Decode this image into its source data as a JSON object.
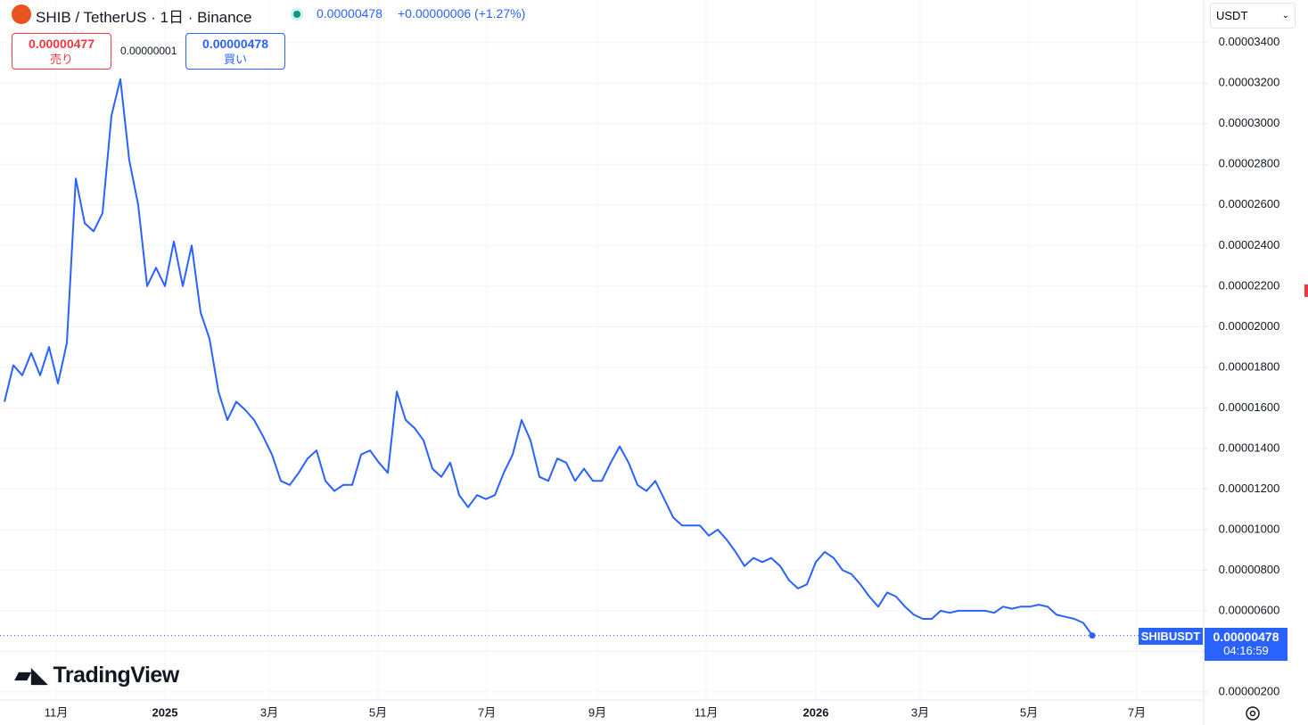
{
  "header": {
    "title": "SHIB / TetherUS · 1日 · Binance",
    "price": "0.00000478",
    "change": "+0.00000006 (+1.27%)",
    "sell_price": "0.00000477",
    "sell_label": "売り",
    "spread": "0.00000001",
    "buy_price": "0.00000478",
    "buy_label": "買い",
    "currency": "USDT",
    "symbol_tag": "SHIBUSDT",
    "last_price": "0.00000478",
    "countdown": "04:16:59",
    "logo": "TradingView"
  },
  "chart_data": {
    "type": "line",
    "color": "#2962ff",
    "grid": true,
    "values": [
      1.63e-05,
      1.81e-05,
      1.76e-05,
      1.87e-05,
      1.76e-05,
      1.9e-05,
      1.72e-05,
      1.92e-05,
      2.73e-05,
      2.51e-05,
      2.47e-05,
      2.56e-05,
      3.04e-05,
      3.22e-05,
      2.82e-05,
      2.6e-05,
      2.2e-05,
      2.29e-05,
      2.2e-05,
      2.42e-05,
      2.2e-05,
      2.4e-05,
      2.07e-05,
      1.94e-05,
      1.68e-05,
      1.54e-05,
      1.63e-05,
      1.59e-05,
      1.54e-05,
      1.46e-05,
      1.37e-05,
      1.24e-05,
      1.22e-05,
      1.28e-05,
      1.35e-05,
      1.39e-05,
      1.24e-05,
      1.19e-05,
      1.22e-05,
      1.22e-05,
      1.37e-05,
      1.39e-05,
      1.33e-05,
      1.28e-05,
      1.68e-05,
      1.54e-05,
      1.5e-05,
      1.44e-05,
      1.3e-05,
      1.26e-05,
      1.33e-05,
      1.17e-05,
      1.11e-05,
      1.17e-05,
      1.15e-05,
      1.17e-05,
      1.28e-05,
      1.37e-05,
      1.54e-05,
      1.44e-05,
      1.26e-05,
      1.24e-05,
      1.35e-05,
      1.33e-05,
      1.24e-05,
      1.3e-05,
      1.24e-05,
      1.24e-05,
      1.33e-05,
      1.41e-05,
      1.33e-05,
      1.22e-05,
      1.19e-05,
      1.24e-05,
      1.15e-05,
      1.06e-05,
      1.02e-05,
      1.02e-05,
      1.02e-05,
      9.7e-06,
      1e-05,
      9.5e-06,
      8.9e-06,
      8.2e-06,
      8.6e-06,
      8.4e-06,
      8.6e-06,
      8.2e-06,
      7.5e-06,
      7.1e-06,
      7.3e-06,
      8.4e-06,
      8.9e-06,
      8.6e-06,
      8e-06,
      7.8e-06,
      7.3e-06,
      6.7e-06,
      6.2e-06,
      6.9e-06,
      6.7e-06,
      6.2e-06,
      5.8e-06,
      5.6e-06,
      5.6e-06,
      6e-06,
      5.9e-06,
      6e-06,
      6e-06,
      6e-06,
      6e-06,
      5.9e-06,
      6.2e-06,
      6.1e-06,
      6.2e-06,
      6.2e-06,
      6.3e-06,
      6.2e-06,
      5.8e-06,
      5.7e-06,
      5.6e-06,
      5.4e-06,
      4.78e-06
    ],
    "xlim": [
      -0.5,
      134.5
    ],
    "xticks": [
      {
        "value": 5.8,
        "label": "11月"
      },
      {
        "value": 18,
        "label": "2025"
      },
      {
        "value": 29.7,
        "label": "3月"
      },
      {
        "value": 41.9,
        "label": "5月"
      },
      {
        "value": 54.1,
        "label": "7月"
      },
      {
        "value": 66.5,
        "label": "9月"
      },
      {
        "value": 78.7,
        "label": "11月"
      },
      {
        "value": 91,
        "label": "2026"
      },
      {
        "value": 102.7,
        "label": "3月"
      },
      {
        "value": 114.9,
        "label": "5月"
      },
      {
        "value": 127,
        "label": "7月"
      }
    ],
    "ylim": [
      1.6e-06,
      3.61e-05
    ],
    "yticks": [
      {
        "value": 2e-06,
        "label": "0.00000200"
      },
      {
        "value": 4e-06,
        "label": "0.00000400"
      },
      {
        "value": 6e-06,
        "label": "0.00000600"
      },
      {
        "value": 8e-06,
        "label": "0.00000800"
      },
      {
        "value": 1e-05,
        "label": "0.00001000"
      },
      {
        "value": 1.2e-05,
        "label": "0.00001200"
      },
      {
        "value": 1.4e-05,
        "label": "0.00001400"
      },
      {
        "value": 1.6e-05,
        "label": "0.00001600"
      },
      {
        "value": 1.8e-05,
        "label": "0.00001800"
      },
      {
        "value": 2e-05,
        "label": "0.00002000"
      },
      {
        "value": 2.2e-05,
        "label": "0.00002200"
      },
      {
        "value": 2.4e-05,
        "label": "0.00002400"
      },
      {
        "value": 2.6e-05,
        "label": "0.00002600"
      },
      {
        "value": 2.8e-05,
        "label": "0.00002800"
      },
      {
        "value": 3e-05,
        "label": "0.00003000"
      },
      {
        "value": 3.2e-05,
        "label": "0.00003200"
      },
      {
        "value": 3.4e-05,
        "label": "0.00003400"
      }
    ]
  }
}
